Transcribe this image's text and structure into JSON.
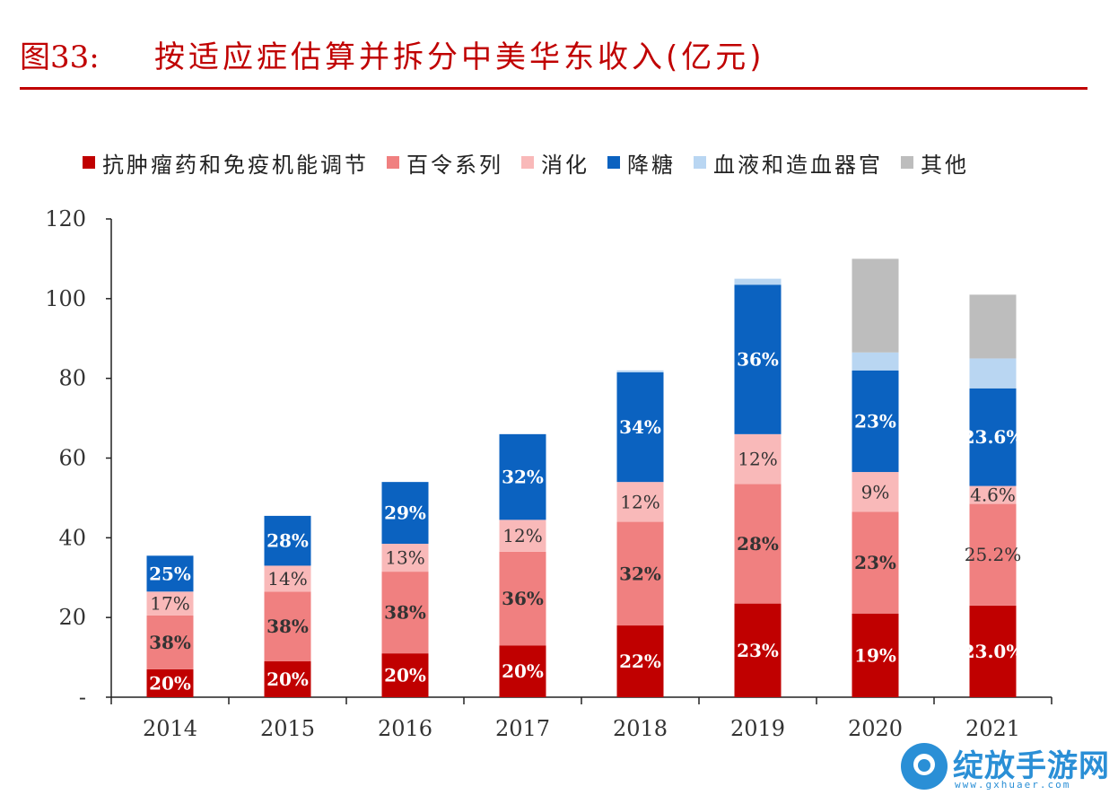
{
  "header": {
    "figure_number": "图33:",
    "title": "按适应症估算并拆分中美华东收入(亿元)"
  },
  "chart_data": {
    "type": "bar",
    "stacked": true,
    "categories": [
      "2014",
      "2015",
      "2016",
      "2017",
      "2018",
      "2019",
      "2020",
      "2021"
    ],
    "ylim": [
      0,
      120
    ],
    "yticks": [
      "-",
      "20",
      "40",
      "60",
      "80",
      "100",
      "120"
    ],
    "ytick_values": [
      0,
      20,
      40,
      60,
      80,
      100,
      120
    ],
    "legend_position": "top",
    "series": [
      {
        "name": "抗肿瘤药和免疫机能调节",
        "color": "#c00000",
        "values": [
          7,
          9,
          11,
          13,
          18,
          23.5,
          21,
          23
        ],
        "labels": [
          "20%",
          "20%",
          "20%",
          "20%",
          "22%",
          "23%",
          "19%",
          "23.0%"
        ],
        "label_color": "#ffffff"
      },
      {
        "name": "百令系列",
        "color": "#f08080",
        "values": [
          13.5,
          17.5,
          20.5,
          23.5,
          26,
          30,
          25.5,
          25.5
        ],
        "labels": [
          "38%",
          "38%",
          "38%",
          "36%",
          "32%",
          "28%",
          "23%",
          "25.2%"
        ],
        "label_color": "#333333"
      },
      {
        "name": "消化",
        "color": "#f9b9b9",
        "values": [
          6,
          6.5,
          7,
          8,
          10,
          12.5,
          10,
          4.5
        ],
        "labels": [
          "17%",
          "14%",
          "13%",
          "12%",
          "12%",
          "12%",
          "9%",
          "4.6%"
        ],
        "label_color": "#333333"
      },
      {
        "name": "降糖",
        "color": "#0b62c0",
        "values": [
          9,
          12.5,
          15.5,
          21.5,
          27.5,
          37.5,
          25.5,
          24.5
        ],
        "labels": [
          "25%",
          "28%",
          "29%",
          "32%",
          "34%",
          "36%",
          "23%",
          "23.6%"
        ],
        "label_color": "#ffffff"
      },
      {
        "name": "血液和造血器官",
        "color": "#b9d6f2",
        "values": [
          0,
          0,
          0,
          0,
          0.5,
          1.5,
          4.5,
          7.5
        ],
        "labels": [
          "",
          "",
          "",
          "",
          "",
          "",
          "",
          ""
        ],
        "label_color": "#333333"
      },
      {
        "name": "其他",
        "color": "#bdbdbd",
        "values": [
          0,
          0,
          0,
          0,
          0,
          0,
          23.5,
          16
        ],
        "labels": [
          "",
          "",
          "",
          "",
          "",
          "",
          "",
          ""
        ],
        "label_color": "#333333"
      }
    ]
  },
  "watermark": {
    "text": "绽放手游网",
    "url": "www.gxhuaer.com"
  }
}
